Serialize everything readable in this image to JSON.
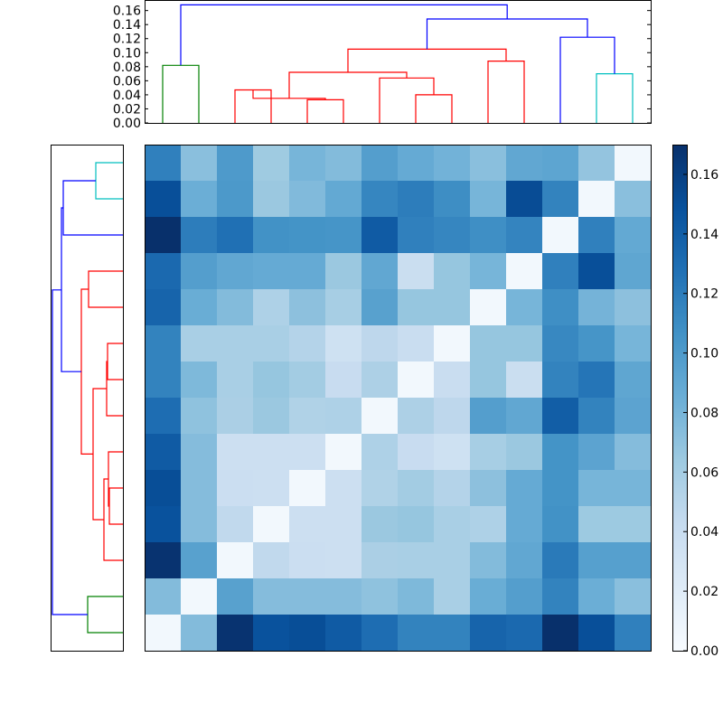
{
  "chart_data": [
    {
      "type": "dendrogram",
      "panel": "top",
      "yticks": [
        "0.00",
        "0.02",
        "0.04",
        "0.06",
        "0.08",
        "0.10",
        "0.12",
        "0.14",
        "0.16"
      ],
      "ylim": [
        0,
        0.175
      ],
      "leaf_count": 14,
      "links": [
        {
          "color": "#008000",
          "left": 0.5,
          "right": 1.5,
          "height": 0.082,
          "left_height": 0,
          "right_height": 0
        },
        {
          "color": "#ff0000",
          "left": 2.5,
          "right": 3.5,
          "height": 0.047,
          "left_height": 0,
          "right_height": 0
        },
        {
          "color": "#ff0000",
          "left": 4.5,
          "right": 5.5,
          "height": 0.033,
          "left_height": 0,
          "right_height": 0
        },
        {
          "color": "#ff0000",
          "left": 3.0,
          "right": 5.0,
          "height": 0.035,
          "left_height": 0.047,
          "right_height": 0.033
        },
        {
          "color": "#ff0000",
          "left": 7.5,
          "right": 8.5,
          "height": 0.04,
          "left_height": 0,
          "right_height": 0
        },
        {
          "color": "#ff0000",
          "left": 6.5,
          "right": 8.0,
          "height": 0.064,
          "left_height": 0,
          "right_height": 0.04
        },
        {
          "color": "#ff0000",
          "left": 4.0,
          "right": 7.25,
          "height": 0.072,
          "left_height": 0.035,
          "right_height": 0.064
        },
        {
          "color": "#ff0000",
          "left": 9.5,
          "right": 10.5,
          "height": 0.088,
          "left_height": 0,
          "right_height": 0
        },
        {
          "color": "#ff0000",
          "left": 5.625,
          "right": 10.0,
          "height": 0.105,
          "left_height": 0.072,
          "right_height": 0.088
        },
        {
          "color": "#00bfbf",
          "left": 12.5,
          "right": 13.5,
          "height": 0.07,
          "left_height": 0,
          "right_height": 0
        },
        {
          "color": "#0000ff",
          "left": 11.5,
          "right": 13.0,
          "height": 0.122,
          "left_height": 0,
          "right_height": 0.07
        },
        {
          "color": "#0000ff",
          "left": 7.8125,
          "right": 12.25,
          "height": 0.148,
          "left_height": 0.105,
          "right_height": 0.122
        },
        {
          "color": "#0000ff",
          "left": 1.0,
          "right": 10.03,
          "height": 0.168,
          "left_height": 0.082,
          "right_height": 0.148
        }
      ]
    },
    {
      "type": "dendrogram",
      "panel": "left",
      "leaf_count": 14,
      "links": [
        {
          "color": "#00bfbf",
          "left": 0.5,
          "right": 1.5,
          "height": 0.03,
          "left_height": 0,
          "right_height": 0
        },
        {
          "color": "#0000ff",
          "left": 1.0,
          "right": 2.5,
          "height": 0.066,
          "left_height": 0.03,
          "right_height": 0
        },
        {
          "color": "#ff0000",
          "left": 3.5,
          "right": 4.5,
          "height": 0.038,
          "left_height": 0,
          "right_height": 0
        },
        {
          "color": "#ff0000",
          "left": 5.5,
          "right": 6.5,
          "height": 0.017,
          "left_height": 0,
          "right_height": 0
        },
        {
          "color": "#ff0000",
          "left": 6.0,
          "right": 7.5,
          "height": 0.018,
          "left_height": 0.017,
          "right_height": 0
        },
        {
          "color": "#ff0000",
          "left": 9.5,
          "right": 10.5,
          "height": 0.015,
          "left_height": 0,
          "right_height": 0
        },
        {
          "color": "#ff0000",
          "left": 8.5,
          "right": 10.0,
          "height": 0.016,
          "left_height": 0,
          "right_height": 0.015
        },
        {
          "color": "#ff0000",
          "left": 9.25,
          "right": 11.5,
          "height": 0.021,
          "left_height": 0.016,
          "right_height": 0
        },
        {
          "color": "#ff0000",
          "left": 6.75,
          "right": 10.375,
          "height": 0.033,
          "left_height": 0.018,
          "right_height": 0.021
        },
        {
          "color": "#ff0000",
          "left": 4.0,
          "right": 8.56,
          "height": 0.046,
          "left_height": 0.038,
          "right_height": 0.033
        },
        {
          "color": "#0000ff",
          "left": 1.75,
          "right": 6.28,
          "height": 0.068,
          "left_height": 0.066,
          "right_height": 0.046
        },
        {
          "color": "#008000",
          "left": 12.5,
          "right": 13.5,
          "height": 0.039,
          "left_height": 0,
          "right_height": 0
        },
        {
          "color": "#0000ff",
          "left": 4.02,
          "right": 13.0,
          "height": 0.078,
          "left_height": 0.068,
          "right_height": 0.039
        }
      ]
    },
    {
      "type": "heatmap",
      "colormap": "Blues",
      "vmin": 0,
      "vmax": 0.17,
      "colorbar_ticks": [
        "0.00",
        "0.02",
        "0.04",
        "0.06",
        "0.08",
        "0.10",
        "0.12",
        "0.14",
        "0.16"
      ],
      "matrix": [
        [
          0.118,
          0.072,
          0.1,
          0.063,
          0.08,
          0.075,
          0.097,
          0.088,
          0.082,
          0.072,
          0.09,
          0.092,
          0.068,
          0.004
        ],
        [
          0.15,
          0.085,
          0.101,
          0.065,
          0.076,
          0.089,
          0.114,
          0.12,
          0.109,
          0.08,
          0.152,
          0.116,
          0.004,
          0.072
        ],
        [
          0.17,
          0.12,
          0.128,
          0.106,
          0.105,
          0.104,
          0.142,
          0.118,
          0.114,
          0.108,
          0.115,
          0.004,
          0.118,
          0.089
        ],
        [
          0.133,
          0.097,
          0.09,
          0.088,
          0.088,
          0.065,
          0.09,
          0.039,
          0.067,
          0.08,
          0.004,
          0.118,
          0.15,
          0.091
        ],
        [
          0.136,
          0.086,
          0.075,
          0.055,
          0.071,
          0.059,
          0.095,
          0.067,
          0.067,
          0.004,
          0.08,
          0.108,
          0.081,
          0.071
        ],
        [
          0.116,
          0.058,
          0.058,
          0.058,
          0.052,
          0.035,
          0.047,
          0.04,
          0.004,
          0.067,
          0.067,
          0.113,
          0.104,
          0.08
        ],
        [
          0.116,
          0.077,
          0.058,
          0.067,
          0.061,
          0.041,
          0.056,
          0.004,
          0.04,
          0.067,
          0.039,
          0.116,
          0.125,
          0.091
        ],
        [
          0.13,
          0.07,
          0.057,
          0.065,
          0.054,
          0.055,
          0.004,
          0.056,
          0.047,
          0.097,
          0.09,
          0.14,
          0.116,
          0.093
        ],
        [
          0.142,
          0.074,
          0.037,
          0.037,
          0.037,
          0.004,
          0.055,
          0.041,
          0.035,
          0.059,
          0.065,
          0.105,
          0.093,
          0.074
        ],
        [
          0.151,
          0.074,
          0.038,
          0.037,
          0.004,
          0.037,
          0.054,
          0.061,
          0.052,
          0.071,
          0.088,
          0.105,
          0.08,
          0.08
        ],
        [
          0.148,
          0.074,
          0.045,
          0.004,
          0.037,
          0.037,
          0.065,
          0.067,
          0.058,
          0.055,
          0.088,
          0.106,
          0.064,
          0.064
        ],
        [
          0.168,
          0.095,
          0.004,
          0.045,
          0.038,
          0.037,
          0.057,
          0.058,
          0.058,
          0.075,
          0.09,
          0.122,
          0.096,
          0.096
        ],
        [
          0.075,
          0.004,
          0.095,
          0.074,
          0.074,
          0.074,
          0.07,
          0.077,
          0.058,
          0.086,
          0.097,
          0.116,
          0.085,
          0.072
        ],
        [
          0.004,
          0.075,
          0.168,
          0.148,
          0.151,
          0.142,
          0.13,
          0.116,
          0.116,
          0.136,
          0.133,
          0.17,
          0.15,
          0.118
        ]
      ]
    }
  ]
}
